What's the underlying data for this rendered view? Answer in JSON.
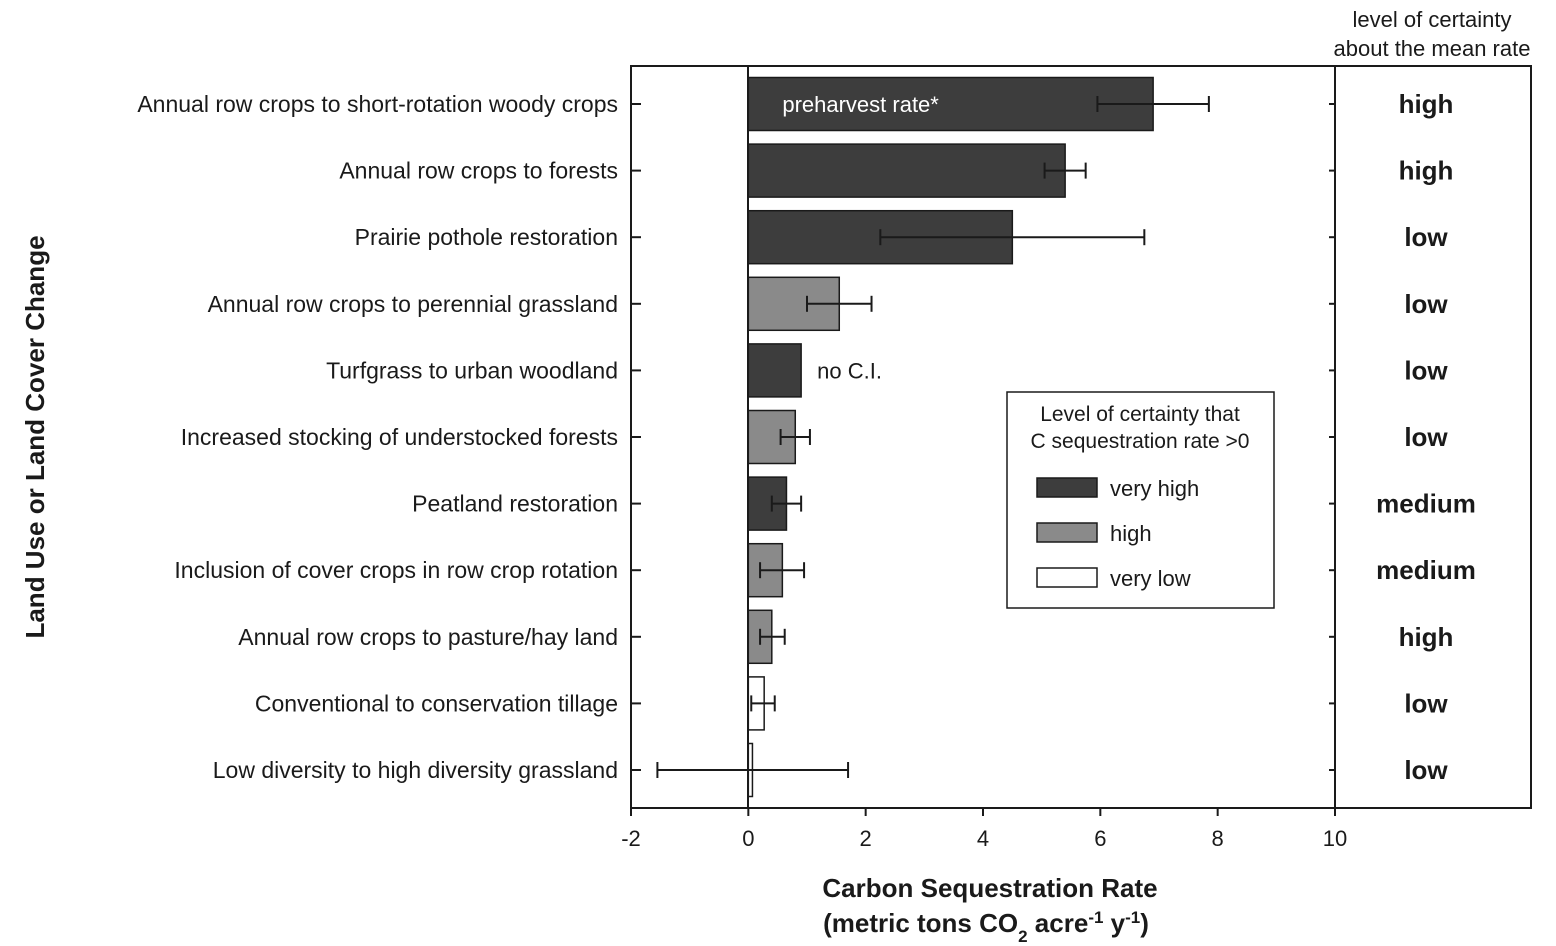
{
  "chart_data": {
    "type": "bar",
    "orientation": "horizontal",
    "title": "",
    "ylabel": "Land Use or Land Cover Change",
    "xlabel_line1": "Carbon Sequestration Rate",
    "xlabel_line2_prefix": "(metric tons CO",
    "xlabel_co2_sub": "2",
    "xlabel_acre": " acre",
    "xlabel_acre_sup": "-1",
    "xlabel_y": " y",
    "xlabel_y_sup": "-1",
    "xlabel_close": ")",
    "xlim": [
      -2,
      10
    ],
    "xticks": [
      "-2",
      "0",
      "2",
      "4",
      "6",
      "8",
      "10"
    ],
    "grid": false,
    "legend_position": "center-right",
    "legend_title_line1": "Level of certainty that",
    "legend_title_line2": "C sequestration rate >0",
    "legend": [
      {
        "key": "very_high",
        "label": "very high",
        "color": "#3d3d3d"
      },
      {
        "key": "high",
        "label": "high",
        "color": "#8a8a8a"
      },
      {
        "key": "very_low",
        "label": "very low",
        "color": "#ffffff"
      }
    ],
    "right_panel_header_line1": "level of certainty",
    "right_panel_header_line2": "about the mean rate",
    "categories": [
      "Annual row crops to short-rotation woody crops",
      "Annual row crops to forests",
      "Prairie pothole restoration",
      "Annual row crops to perennial grassland",
      "Turfgrass to urban woodland",
      "Increased stocking of understocked forests",
      "Peatland restoration",
      "Inclusion of cover crops in row crop rotation",
      "Annual row crops to pasture/hay land",
      "Conventional to conservation tillage",
      "Low diversity to high diversity grassland"
    ],
    "values": [
      6.9,
      5.4,
      4.5,
      1.55,
      0.9,
      0.8,
      0.65,
      0.58,
      0.4,
      0.27,
      0.07
    ],
    "error_low": [
      5.95,
      5.05,
      2.25,
      1.0,
      null,
      0.55,
      0.4,
      0.2,
      0.2,
      0.05,
      -1.55
    ],
    "error_high": [
      7.85,
      5.75,
      6.75,
      2.1,
      null,
      1.05,
      0.9,
      0.95,
      0.62,
      0.45,
      1.7
    ],
    "certainty_gt0": [
      "very_high",
      "very_high",
      "very_high",
      "high",
      "very_high",
      "high",
      "very_high",
      "high",
      "high",
      "very_low",
      "very_low"
    ],
    "certainty_mean": [
      "high",
      "high",
      "low",
      "low",
      "low",
      "low",
      "medium",
      "medium",
      "high",
      "low",
      "low"
    ],
    "annotations": [
      {
        "category_index": 0,
        "text": "preharvest rate*",
        "placement": "inside-bar"
      },
      {
        "category_index": 4,
        "text": "no C.I.",
        "placement": "right-of-bar"
      }
    ]
  }
}
